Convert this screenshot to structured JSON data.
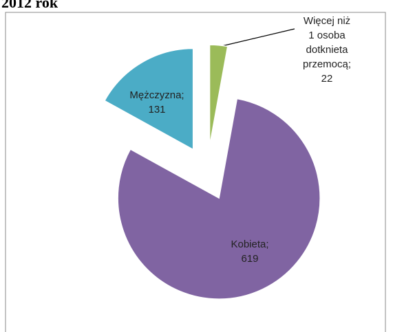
{
  "chart_data": {
    "type": "pie",
    "title": "2012 rok",
    "categories": [
      "Więcej niż 1 osoba dotknieta przemocą;",
      "Kobieta;",
      "Mężczyzna;"
    ],
    "values": [
      22,
      619,
      131
    ],
    "colors": [
      "#9bbb59",
      "#8064a2",
      "#4bacc6"
    ],
    "exploded": true
  }
}
